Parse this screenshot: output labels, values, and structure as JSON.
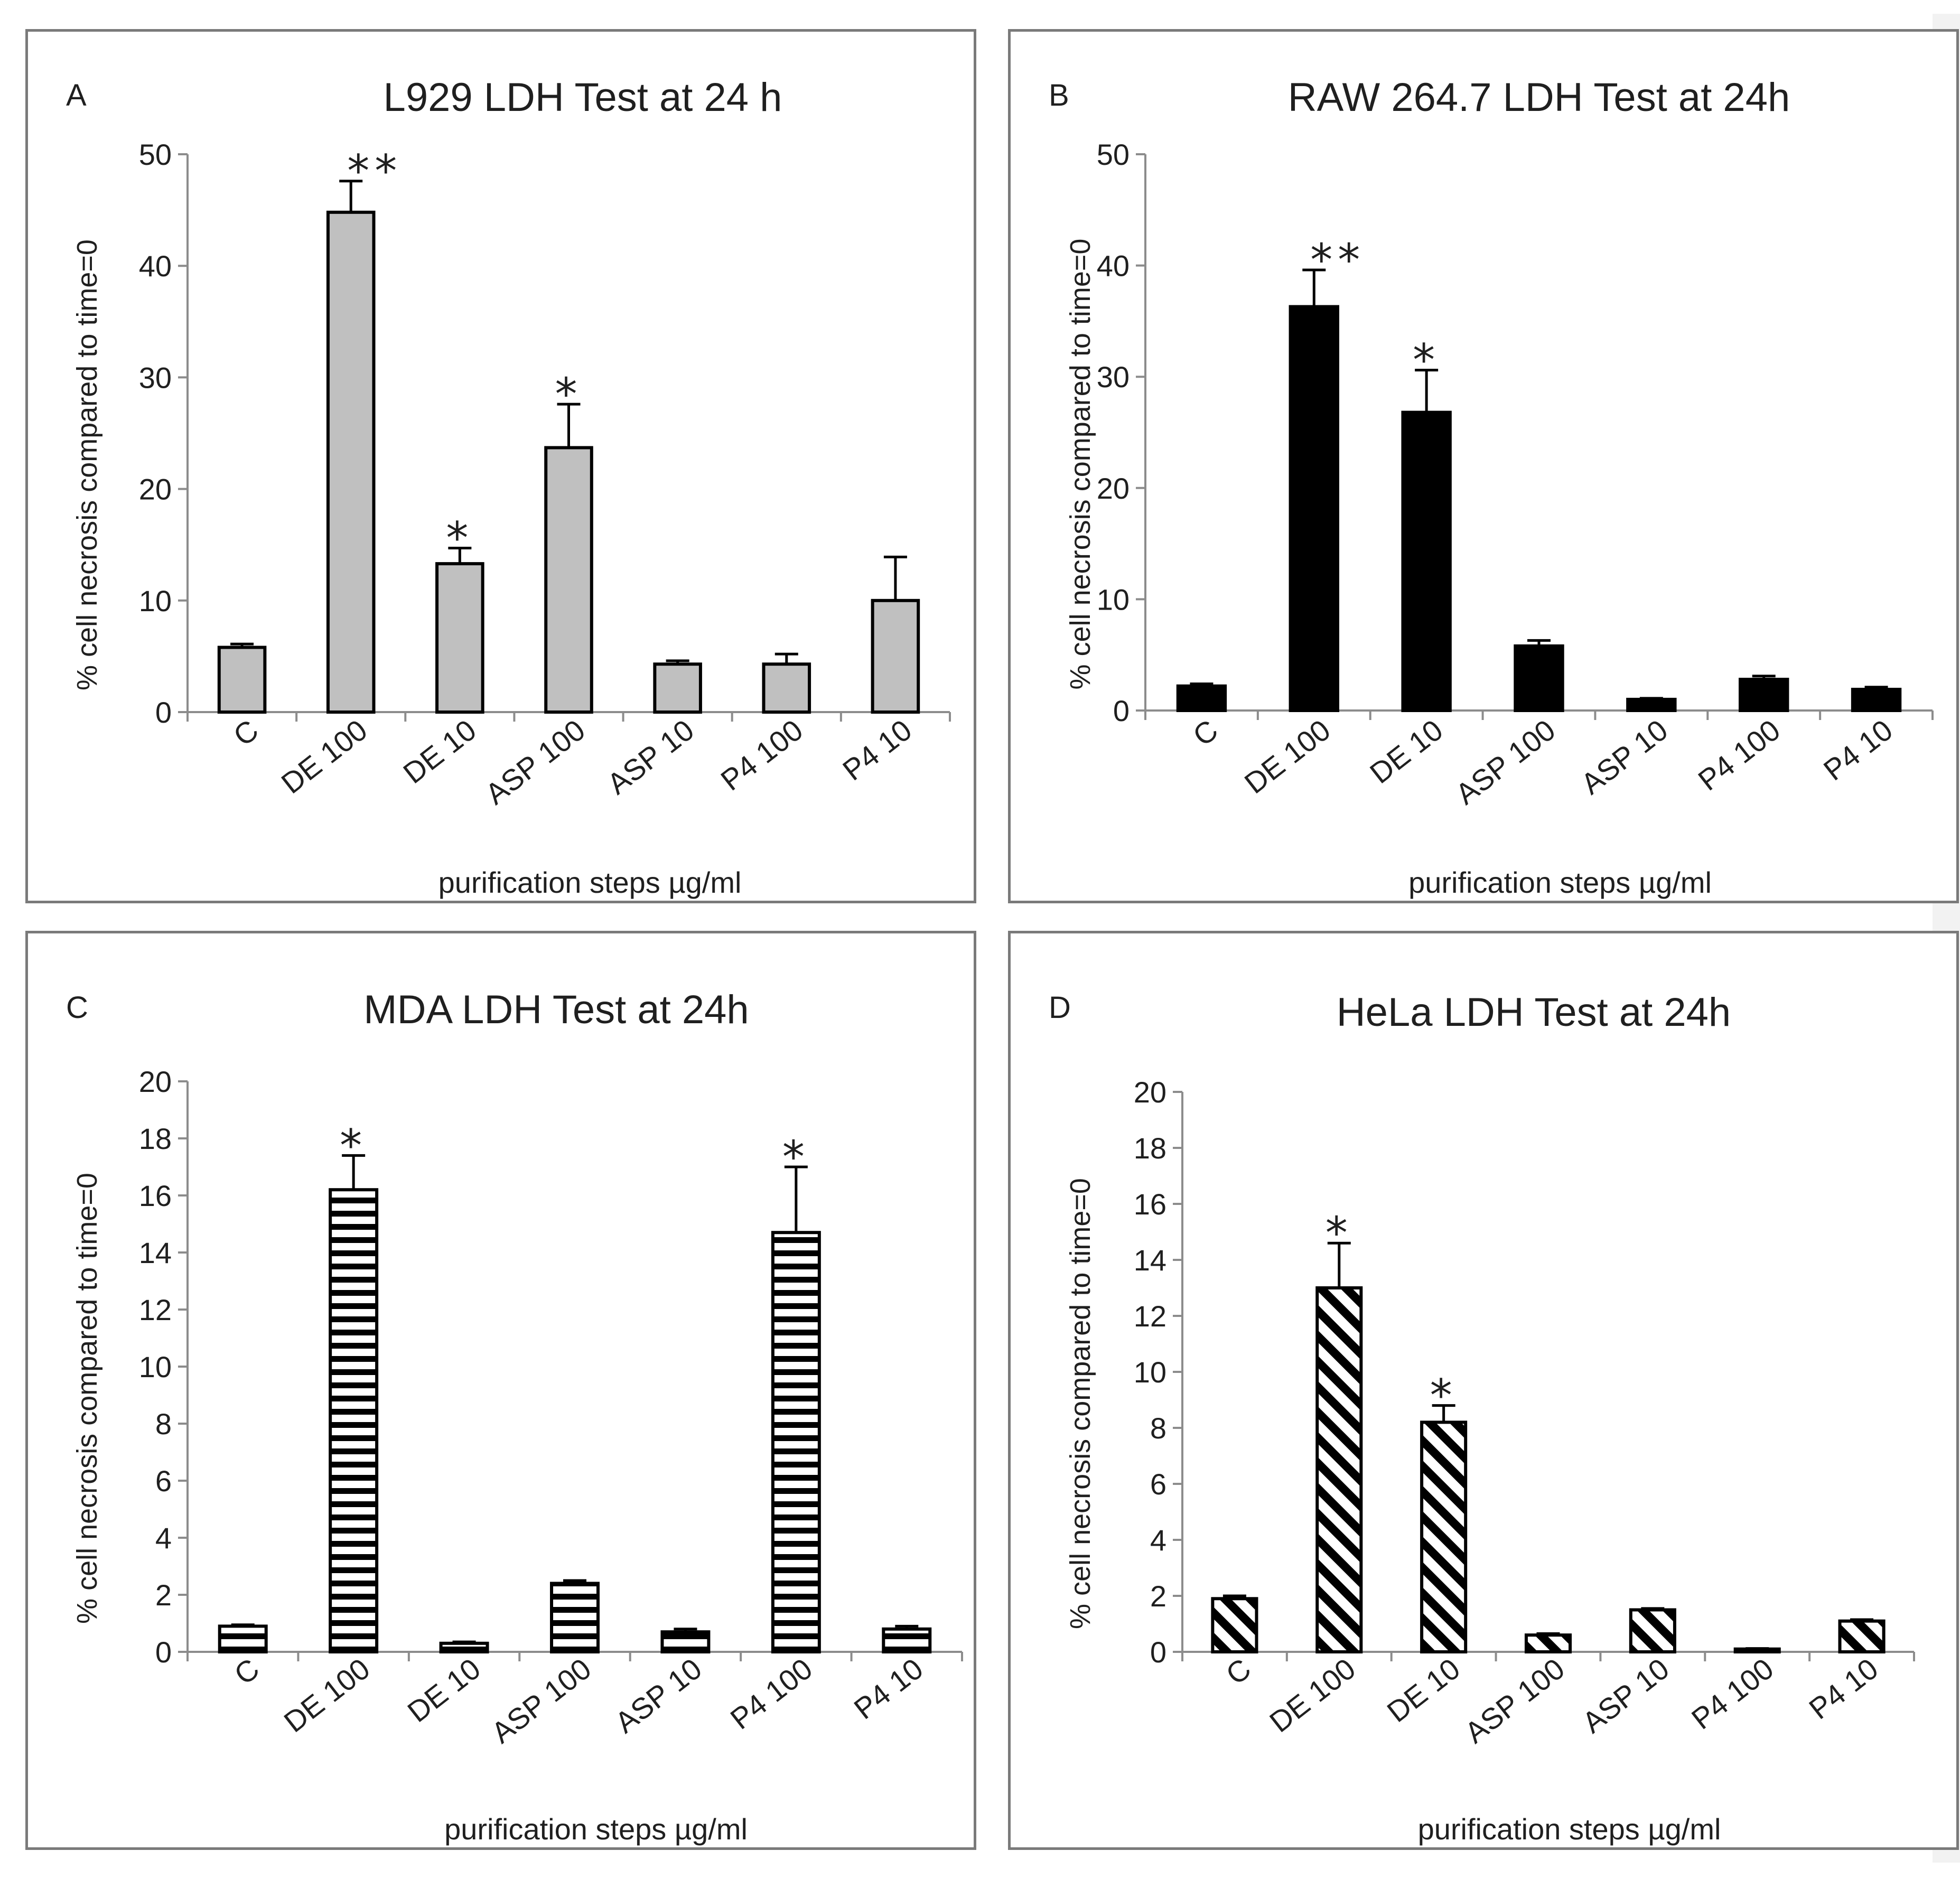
{
  "chart_data": [
    {
      "type": "bar",
      "panel_letter": "A",
      "title": "L929 LDH Test at 24 h",
      "xlabel": "purification steps µg/ml",
      "ylabel": "% cell necrosis compared to time=0",
      "ylim": [
        0,
        50
      ],
      "yticks": [
        0,
        10,
        20,
        30,
        40,
        50
      ],
      "categories": [
        "C",
        "DE 100",
        "DE 10",
        "ASP 100",
        "ASP 10",
        "P4 100",
        "P4 10"
      ],
      "values": [
        5.8,
        44.8,
        13.3,
        23.7,
        4.3,
        4.3,
        10.0
      ],
      "errors": [
        0.3,
        2.8,
        1.4,
        3.9,
        0.3,
        0.9,
        3.9
      ],
      "significance": [
        "",
        "**",
        "*",
        "*",
        "",
        "",
        ""
      ],
      "fill": "gray",
      "bar_color": "#c0c0c0"
    },
    {
      "type": "bar",
      "panel_letter": "B",
      "title": "RAW 264.7 LDH Test at 24h",
      "xlabel": "purification steps µg/ml",
      "ylabel": "% cell necrosis compared to time=0",
      "ylim": [
        0,
        50
      ],
      "yticks": [
        0,
        10,
        20,
        30,
        40,
        50
      ],
      "categories": [
        "C",
        "DE 100",
        "DE 10",
        "ASP 100",
        "ASP 10",
        "P4 100",
        "P4 10"
      ],
      "values": [
        2.2,
        36.3,
        26.8,
        5.8,
        1.0,
        2.8,
        1.9
      ],
      "errors": [
        0.2,
        3.3,
        3.8,
        0.5,
        0.1,
        0.3,
        0.2
      ],
      "significance": [
        "",
        "**",
        "*",
        "",
        "",
        "",
        ""
      ],
      "fill": "solid",
      "bar_color": "#000000"
    },
    {
      "type": "bar",
      "panel_letter": "C",
      "title": "MDA LDH Test at 24h",
      "xlabel": "purification steps µg/ml",
      "ylabel": "% cell necrosis compared to time=0",
      "ylim": [
        0,
        20
      ],
      "yticks": [
        0,
        2,
        4,
        6,
        8,
        10,
        12,
        14,
        16,
        18,
        20
      ],
      "categories": [
        "C",
        "DE 100",
        "DE 10",
        "ASP 100",
        "ASP 10",
        "P4 100",
        "P4 10"
      ],
      "values": [
        0.9,
        16.2,
        0.3,
        2.4,
        0.7,
        14.7,
        0.8
      ],
      "errors": [
        0.05,
        1.2,
        0.05,
        0.1,
        0.1,
        2.3,
        0.1
      ],
      "significance": [
        "",
        "*",
        "",
        "",
        "",
        "*",
        ""
      ],
      "fill": "horizontal-stripes",
      "bar_color": "#000000"
    },
    {
      "type": "bar",
      "panel_letter": "D",
      "title": "HeLa LDH Test at 24h",
      "xlabel": "purification steps µg/ml",
      "ylabel": "% cell necrosis compared to time=0",
      "ylim": [
        0,
        20
      ],
      "yticks": [
        0,
        2,
        4,
        6,
        8,
        10,
        12,
        14,
        16,
        18,
        20
      ],
      "categories": [
        "C",
        "DE 100",
        "DE 10",
        "ASP 100",
        "ASP 10",
        "P4 100",
        "P4 10"
      ],
      "values": [
        1.9,
        13.0,
        8.2,
        0.6,
        1.5,
        0.1,
        1.1
      ],
      "errors": [
        0.1,
        1.6,
        0.6,
        0.05,
        0.05,
        0.02,
        0.05
      ],
      "significance": [
        "",
        "*",
        "*",
        "",
        "",
        "",
        ""
      ],
      "fill": "diagonal-stripes",
      "bar_color": "#000000"
    }
  ]
}
